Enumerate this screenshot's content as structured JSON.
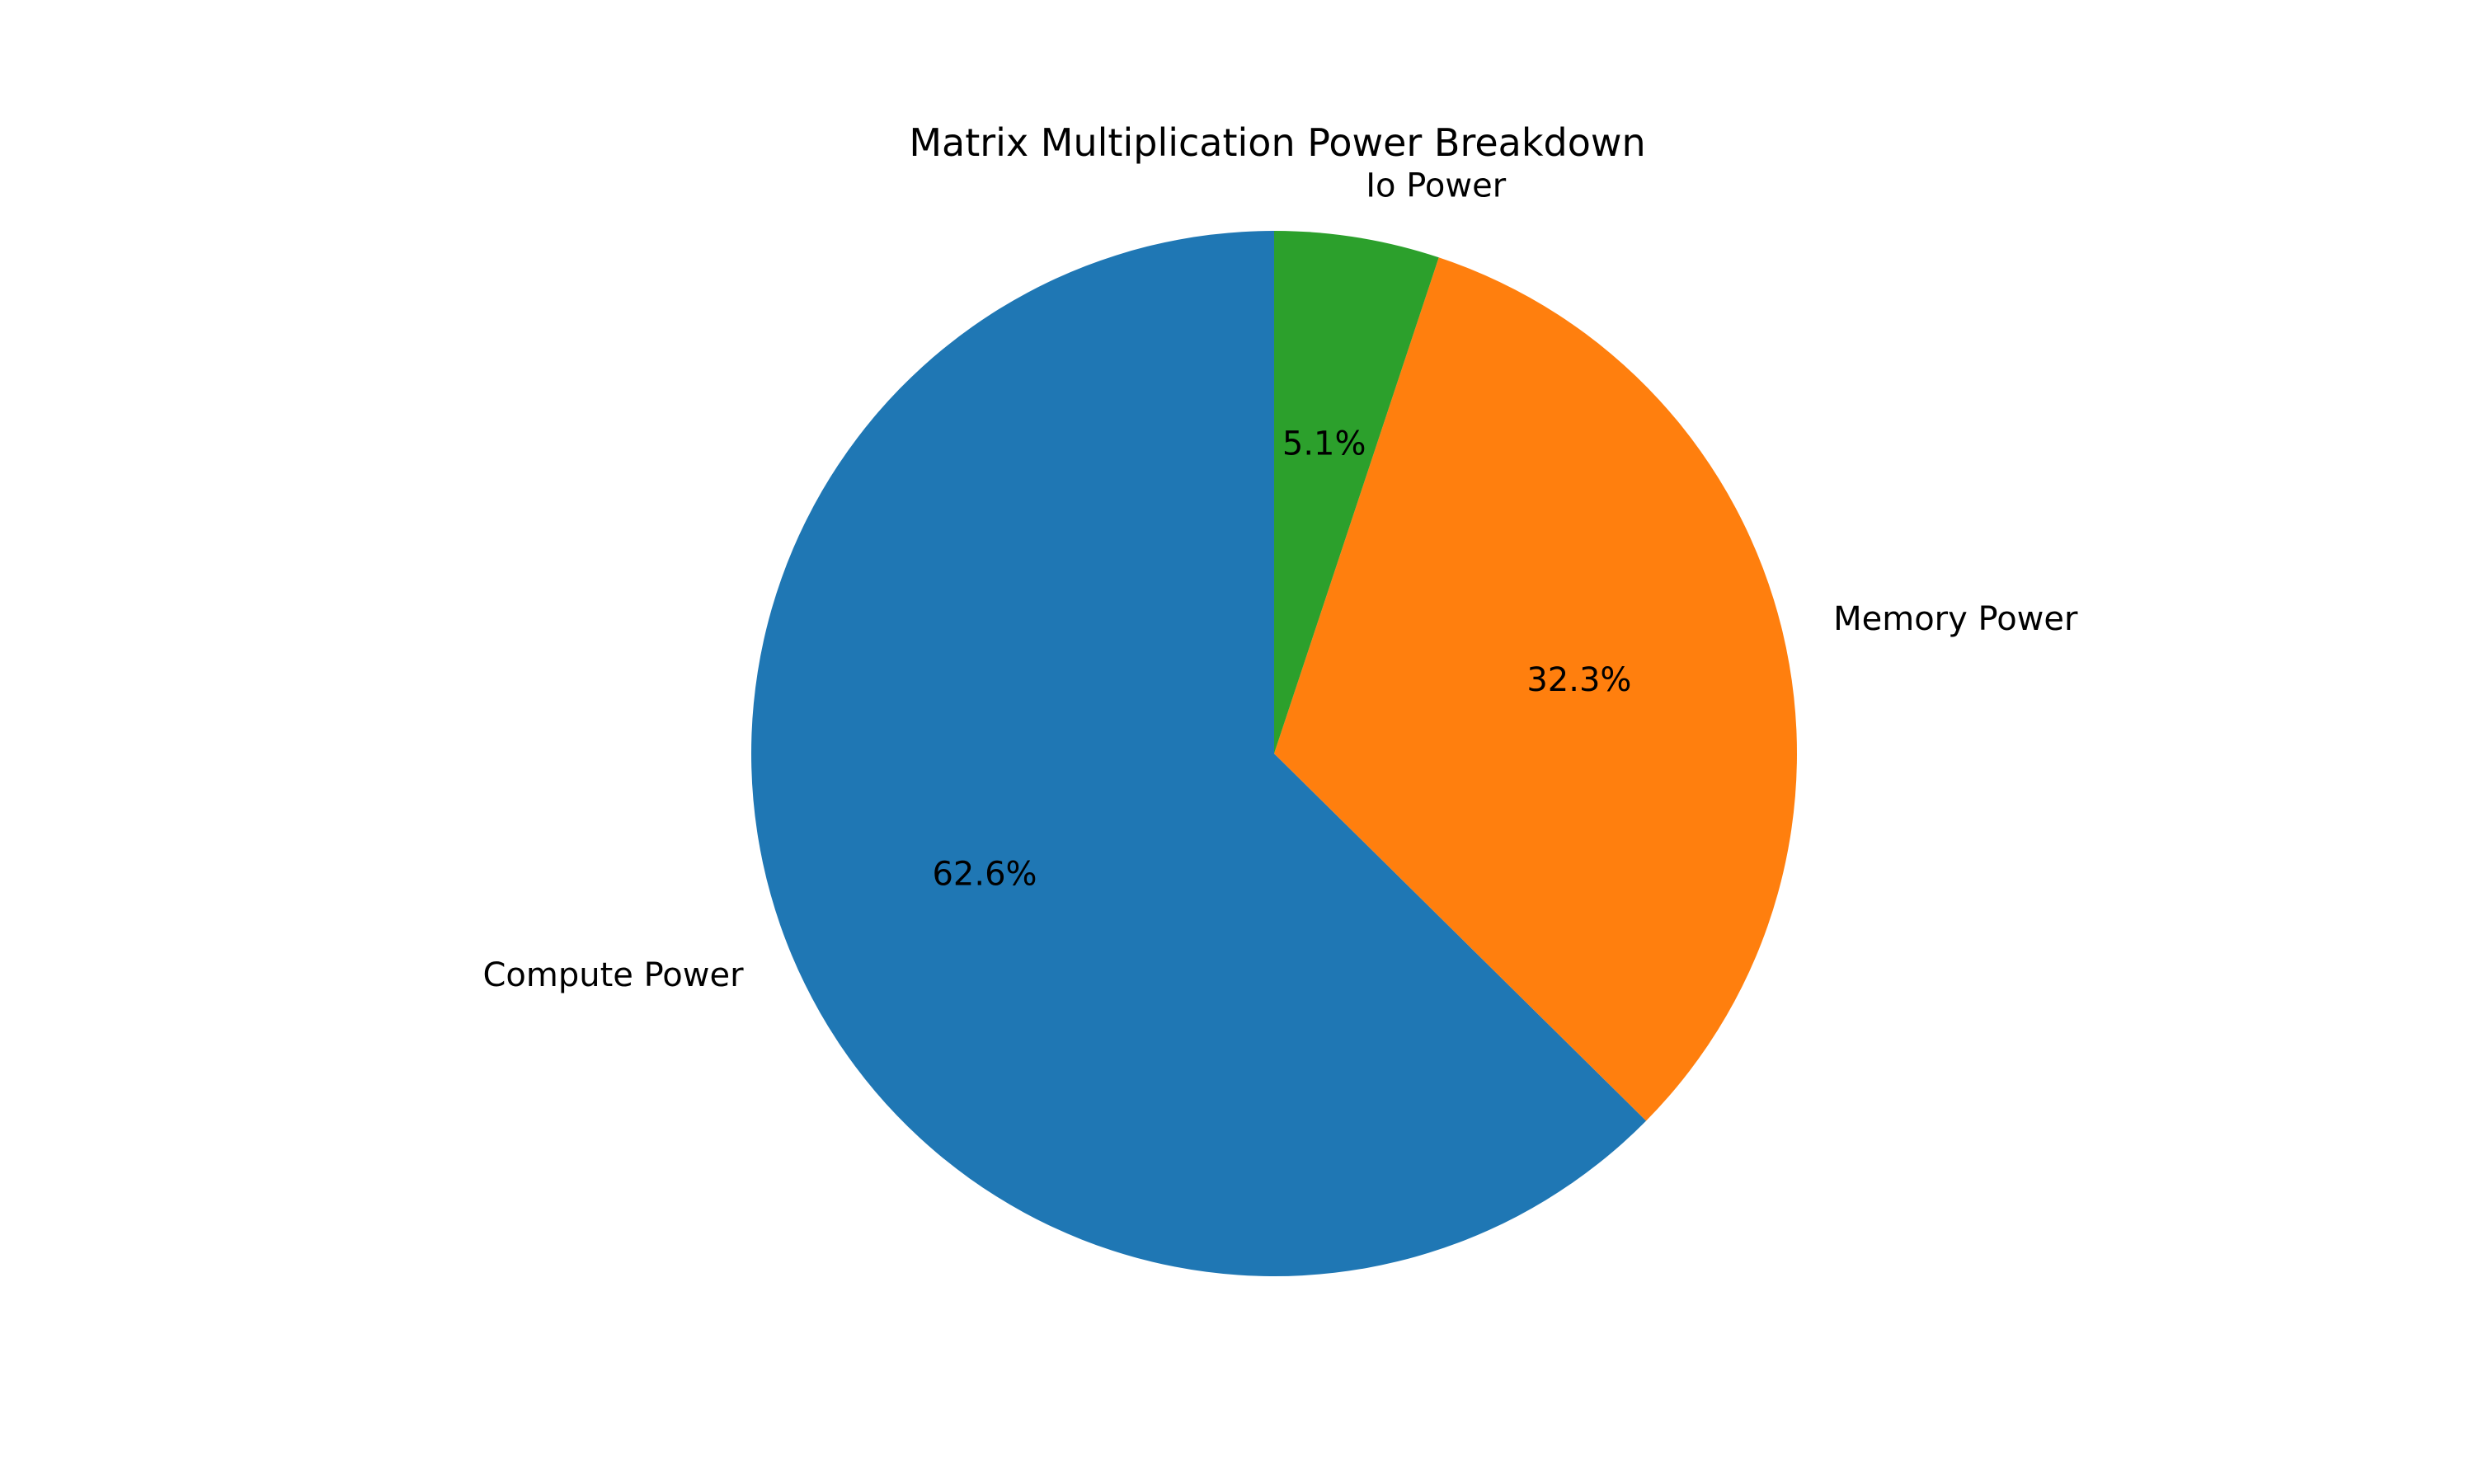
{
  "chart_data": {
    "type": "pie",
    "title": "Matrix Multiplication Power Breakdown",
    "slices": [
      {
        "label": "Compute Power",
        "value": 62.6,
        "pct_label": "62.6%",
        "color": "#1f77b4"
      },
      {
        "label": "Memory Power",
        "value": 32.3,
        "pct_label": "32.3%",
        "color": "#ff7f0e"
      },
      {
        "label": "Io Power",
        "value": 5.1,
        "pct_label": "5.1%",
        "color": "#2ca02c"
      }
    ],
    "start_angle": 90,
    "direction": "counterclockwise",
    "legend": "none"
  }
}
